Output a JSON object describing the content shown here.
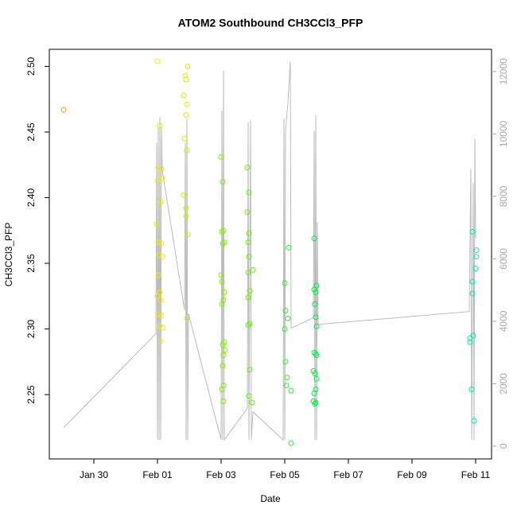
{
  "chart_data": {
    "type": "scatter",
    "title": "ATOM2 Southbound CH3CCl3_PFP",
    "xlabel": "Date",
    "ylabel": "CH3CCl3_PFP",
    "xlim": [
      28.6,
      42.5
    ],
    "xticks": [
      {
        "value": 30,
        "label": "Jan 30"
      },
      {
        "value": 32,
        "label": "Feb 01"
      },
      {
        "value": 34,
        "label": "Feb 03"
      },
      {
        "value": 36,
        "label": "Feb 05"
      },
      {
        "value": 38,
        "label": "Feb 07"
      },
      {
        "value": 40,
        "label": "Feb 09"
      },
      {
        "value": 42,
        "label": "Feb 11"
      }
    ],
    "ylim": [
      2.201,
      2.513
    ],
    "yticks": [
      2.25,
      {
        "value": 2.3,
        "label": "2.30"
      },
      2.35,
      {
        "value": 2.4,
        "label": "2.40"
      },
      2.45,
      {
        "value": 2.5,
        "label": "2.50"
      }
    ],
    "y2lim": [
      -410,
      12710
    ],
    "y2ticks": [
      0,
      2000,
      4000,
      6000,
      8000,
      10000,
      12000
    ],
    "x": [
      29.05,
      32.0,
      32.075,
      32.025,
      32.125,
      32.0,
      32.15,
      32.1,
      31.975,
      32.025,
      32.125,
      32.05,
      32.15,
      32.025,
      32.075,
      32.0,
      32.1,
      32.025,
      32.125,
      32.075,
      32.175,
      32.1,
      32.95,
      32.875,
      32.9,
      32.825,
      32.925,
      32.9,
      32.85,
      32.925,
      32.825,
      32.9,
      32.9,
      32.95,
      32.925,
      34.0,
      34.05,
      34.075,
      34.025,
      34.1,
      34.05,
      34.0,
      34.025,
      34.1,
      34.075,
      34.025,
      34.1,
      34.05,
      34.125,
      34.075,
      34.05,
      34.075,
      34.025,
      34.075,
      34.825,
      34.875,
      34.825,
      34.875,
      34.85,
      34.875,
      34.85,
      35.0,
      34.9,
      34.85,
      34.9,
      34.85,
      34.9,
      34.875,
      34.975,
      36.0,
      36.125,
      36.025,
      36.1,
      36.0,
      36.025,
      36.075,
      36.05,
      36.2,
      36.2,
      36.925,
      37.0,
      36.925,
      36.975,
      36.95,
      36.975,
      37.0,
      36.925,
      36.975,
      37.0,
      36.9,
      36.95,
      37.0,
      36.975,
      36.925,
      36.9,
      36.975,
      36.95,
      41.9,
      41.9,
      41.9,
      42.0,
      42.025,
      42.025,
      41.825,
      41.925,
      41.825,
      41.875,
      41.95
    ],
    "values": [
      2.467,
      2.504,
      2.455,
      2.423,
      2.422,
      2.413,
      2.415,
      2.397,
      2.38,
      2.366,
      2.365,
      2.356,
      2.355,
      2.341,
      2.328,
      2.325,
      2.322,
      2.311,
      2.31,
      2.302,
      2.301,
      2.291,
      2.5,
      2.493,
      2.49,
      2.478,
      2.471,
      2.463,
      2.445,
      2.436,
      2.402,
      2.392,
      2.386,
      2.372,
      2.308,
      2.431,
      2.412,
      2.375,
      2.374,
      2.366,
      2.365,
      2.341,
      2.336,
      2.328,
      2.322,
      2.319,
      2.29,
      2.288,
      2.284,
      2.28,
      2.272,
      2.257,
      2.254,
      2.245,
      2.423,
      2.404,
      2.389,
      2.373,
      2.366,
      2.355,
      2.343,
      2.345,
      2.329,
      2.324,
      2.304,
      2.303,
      2.269,
      2.249,
      2.244,
      2.335,
      2.362,
      2.314,
      2.308,
      2.3,
      2.275,
      2.263,
      2.257,
      2.253,
      2.213,
      2.369,
      2.333,
      2.33,
      2.328,
      2.319,
      2.309,
      2.302,
      2.282,
      2.281,
      2.28,
      2.268,
      2.266,
      2.262,
      2.254,
      2.251,
      2.245,
      2.244,
      2.243,
      2.374,
      2.336,
      2.327,
      2.346,
      2.36,
      2.355,
      2.293,
      2.295,
      2.29,
      2.254,
      2.23
    ],
    "colors": [
      "#ff9900",
      "#e6ee00",
      "#e6ee00",
      "#e6ee00",
      "#e6ee00",
      "#e6ee00",
      "#e6ee00",
      "#e6ee00",
      "#e6ee00",
      "#e6ee00",
      "#e6ee00",
      "#e6ee00",
      "#e6ee00",
      "#e6ee00",
      "#e6ee00",
      "#e6ee00",
      "#e6ee00",
      "#e6ee00",
      "#e6ee00",
      "#e6ee00",
      "#e6ee00",
      "#e6ee00",
      "#ccf200",
      "#ccf200",
      "#ccf200",
      "#ccf200",
      "#ccf200",
      "#ccf200",
      "#ccf200",
      "#ccf200",
      "#ccf200",
      "#ccf200",
      "#ccf200",
      "#ccf200",
      "#ccf200",
      "#80f000",
      "#80f000",
      "#80f000",
      "#80f000",
      "#80f000",
      "#80f000",
      "#80f000",
      "#80f000",
      "#80f000",
      "#80f000",
      "#80f000",
      "#80f000",
      "#80f000",
      "#80f000",
      "#80f000",
      "#80f000",
      "#80f000",
      "#80f000",
      "#80f000",
      "#66f000",
      "#66f000",
      "#66f000",
      "#66f000",
      "#66f000",
      "#66f000",
      "#66f000",
      "#66f000",
      "#66f000",
      "#66f000",
      "#66f000",
      "#66f000",
      "#66f000",
      "#66f000",
      "#66f000",
      "#33ee33",
      "#33ee33",
      "#33ee33",
      "#33ee33",
      "#33ee33",
      "#33ee33",
      "#33ee33",
      "#33ee33",
      "#33ee33",
      "#33ee33",
      "#00ee44",
      "#00ee44",
      "#00ee44",
      "#00ee44",
      "#00ee44",
      "#00ee44",
      "#00ee44",
      "#00ee44",
      "#00ee44",
      "#00ee44",
      "#00ee44",
      "#00ee44",
      "#00ee44",
      "#00ee44",
      "#00ee44",
      "#00ee44",
      "#00ee44",
      "#00ee44",
      "#00eeaa",
      "#00eeaa",
      "#00eeaa",
      "#00eeaa",
      "#00eeaa",
      "#00eeaa",
      "#00eeaa",
      "#00eeaa",
      "#00eeaa",
      "#00eeaa",
      "#00eeaa"
    ],
    "line": {
      "axis": "y2",
      "color": "#bbbbbb",
      "x": [
        29.05,
        31.95,
        31.975,
        32.0,
        32.025,
        32.05,
        32.075,
        32.1,
        32.125,
        32.15,
        32.85,
        32.875,
        32.9,
        32.925,
        32.95,
        32.975,
        34.0,
        34.025,
        34.05,
        34.075,
        34.1,
        34.825,
        34.85,
        34.875,
        34.925,
        34.95,
        35.0,
        35.95,
        35.975,
        36.0,
        36.025,
        36.1,
        36.175,
        36.2,
        36.9,
        36.925,
        36.95,
        36.975,
        37.0,
        37.025,
        37.05,
        41.8,
        41.85,
        41.875,
        41.925,
        41.95,
        41.975,
        42.0
      ],
      "values": [
        590,
        3600,
        9720,
        200,
        10230,
        200,
        10540,
        200,
        10230,
        8830,
        4360,
        9720,
        200,
        10490,
        200,
        4240,
        200,
        10740,
        200,
        12020,
        200,
        1220,
        10360,
        200,
        10430,
        200,
        1100,
        200,
        10490,
        200,
        10100,
        11000,
        12320,
        3780,
        4110,
        10100,
        200,
        10610,
        200,
        7170,
        3900,
        4310,
        8900,
        200,
        8440,
        200,
        9850,
        6660
      ]
    }
  }
}
